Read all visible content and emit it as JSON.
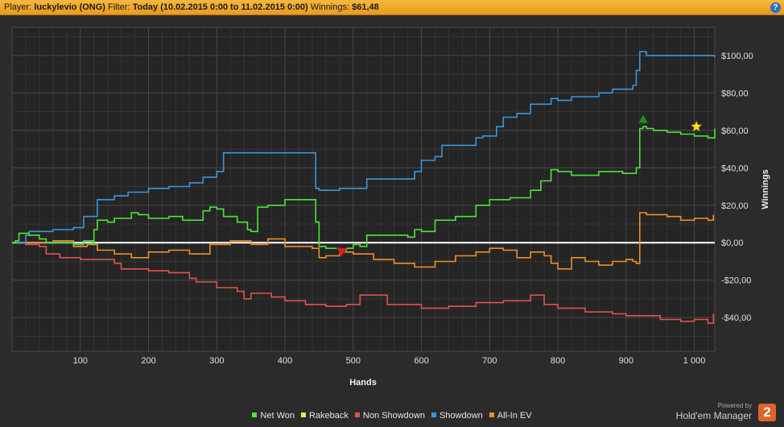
{
  "header": {
    "player_label": "Player:",
    "player_value": "luckylevio (ONG)",
    "filter_label": "Filter:",
    "filter_value": "Today (10.02.2015 0:00 to 11.02.2015 0:00)",
    "winnings_label": "Winnings:",
    "winnings_value": "$61,48",
    "help_glyph": "?"
  },
  "brand": {
    "powered": "Powered by",
    "name": "Hold'em Manager",
    "logo_text": "2"
  },
  "chart_data": {
    "type": "line",
    "xlabel": "Hands",
    "ylabel": "Winnings",
    "xlim": [
      0,
      1030
    ],
    "ylim": [
      -58,
      115
    ],
    "x_ticks": [
      {
        "v": 100,
        "label": "100"
      },
      {
        "v": 200,
        "label": "200"
      },
      {
        "v": 300,
        "label": "300"
      },
      {
        "v": 400,
        "label": "400"
      },
      {
        "v": 500,
        "label": "500"
      },
      {
        "v": 600,
        "label": "600"
      },
      {
        "v": 700,
        "label": "700"
      },
      {
        "v": 800,
        "label": "800"
      },
      {
        "v": 900,
        "label": "900"
      },
      {
        "v": 1000,
        "label": "1 000"
      }
    ],
    "y_ticks": [
      {
        "v": 100,
        "label": "$100,00"
      },
      {
        "v": 80,
        "label": "$80,00"
      },
      {
        "v": 60,
        "label": "$60,00"
      },
      {
        "v": 40,
        "label": "$40,00"
      },
      {
        "v": 20,
        "label": "$20,00"
      },
      {
        "v": 0,
        "label": "$0,00"
      },
      {
        "v": -20,
        "label": "-$20,00"
      },
      {
        "v": -40,
        "label": "-$40,00"
      }
    ],
    "grid": true,
    "legend_position": "bottom",
    "series": [
      {
        "name": "Net Won",
        "color": "#4fe33a",
        "x": [
          0,
          5,
          10,
          25,
          40,
          50,
          60,
          75,
          90,
          100,
          105,
          118,
          120,
          125,
          140,
          150,
          160,
          175,
          185,
          200,
          215,
          230,
          250,
          270,
          280,
          290,
          300,
          310,
          330,
          345,
          350,
          360,
          375,
          390,
          400,
          440,
          445,
          450,
          460,
          480,
          490,
          500,
          510,
          520,
          550,
          580,
          590,
          600,
          620,
          650,
          680,
          700,
          730,
          760,
          775,
          790,
          800,
          820,
          840,
          860,
          880,
          895,
          910,
          915,
          920,
          925,
          930,
          940,
          960,
          980,
          1000,
          1010,
          1020,
          1030
        ],
        "y": [
          0,
          1,
          5,
          4,
          2,
          0,
          0,
          0,
          -1,
          -1,
          1,
          -1,
          7,
          12,
          11,
          13,
          13,
          16,
          15,
          13,
          13,
          14,
          12,
          12,
          17,
          19,
          18,
          14,
          11,
          7,
          6,
          19,
          20,
          20,
          23,
          23,
          11,
          -2,
          -3,
          -4,
          -3,
          -1,
          -2,
          4,
          4,
          3,
          7,
          6,
          12,
          14,
          20,
          23,
          24,
          28,
          33,
          39,
          38,
          36,
          36,
          38,
          38,
          37,
          37,
          40,
          61,
          62,
          61,
          60,
          59,
          58,
          57,
          57,
          56,
          61
        ]
      },
      {
        "name": "Rakeback",
        "color": "#f2e94c",
        "x": [],
        "y": []
      },
      {
        "name": "Non Showdown",
        "color": "#e0544b",
        "x": [
          0,
          20,
          40,
          50,
          70,
          100,
          150,
          160,
          200,
          230,
          260,
          270,
          300,
          330,
          340,
          350,
          380,
          400,
          430,
          460,
          490,
          510,
          550,
          600,
          640,
          680,
          720,
          760,
          780,
          800,
          840,
          880,
          900,
          950,
          980,
          1000,
          1020,
          1028
        ],
        "y": [
          0,
          -1,
          -2,
          -6,
          -8,
          -9,
          -11,
          -14,
          -15,
          -16,
          -19,
          -21,
          -24,
          -26,
          -30,
          -27,
          -29,
          -31,
          -33,
          -34,
          -33,
          -28,
          -33,
          -35,
          -34,
          -32,
          -31,
          -28,
          -33,
          -35,
          -37,
          -38,
          -39,
          -41,
          -42,
          -41,
          -43,
          -38
        ]
      },
      {
        "name": "Showdown",
        "color": "#3a97de",
        "x": [
          0,
          20,
          25,
          60,
          90,
          105,
          110,
          125,
          150,
          170,
          200,
          230,
          260,
          280,
          300,
          310,
          350,
          370,
          380,
          390,
          445,
          450,
          480,
          500,
          520,
          590,
          600,
          620,
          630,
          680,
          690,
          710,
          720,
          740,
          760,
          790,
          800,
          820,
          840,
          860,
          880,
          910,
          915,
          920,
          930,
          1030
        ],
        "y": [
          0,
          4,
          6,
          7,
          8,
          14,
          14,
          23,
          25,
          27,
          29,
          30,
          32,
          35,
          38,
          48,
          48,
          48,
          48,
          48,
          29,
          28,
          29,
          29,
          34,
          38,
          44,
          46,
          52,
          56,
          57,
          62,
          67,
          69,
          74,
          77,
          76,
          78,
          78,
          80,
          82,
          84,
          92,
          102,
          100,
          99
        ]
      },
      {
        "name": "All-In EV",
        "color": "#ee8e2a",
        "x": [
          0,
          30,
          60,
          90,
          110,
          125,
          150,
          175,
          200,
          230,
          260,
          290,
          320,
          350,
          375,
          400,
          440,
          450,
          460,
          480,
          500,
          530,
          560,
          590,
          620,
          650,
          680,
          700,
          720,
          740,
          760,
          780,
          790,
          800,
          820,
          840,
          860,
          880,
          900,
          910,
          915,
          920,
          930,
          960,
          980,
          1000,
          1020,
          1028
        ],
        "y": [
          0,
          0,
          1,
          -2,
          -1,
          -4,
          -6,
          -8,
          -5,
          -4,
          -6,
          -1,
          1,
          -1,
          2,
          -2,
          -3,
          -8,
          -7,
          -5,
          -6,
          -9,
          -11,
          -13,
          -10,
          -7,
          -5,
          -3,
          -4,
          -8,
          -5,
          -7,
          -11,
          -14,
          -8,
          -10,
          -12,
          -10,
          -9,
          -10,
          -11,
          16,
          15,
          14,
          12,
          13,
          12,
          15
        ]
      }
    ],
    "annotations": [
      {
        "type": "triangle-down",
        "x": 483,
        "y": -5,
        "color": "#e01f1f"
      },
      {
        "type": "triangle-up",
        "x": 925,
        "y": 66,
        "color": "#1f8e1f"
      },
      {
        "type": "star",
        "x": 1003,
        "y": 62,
        "color": "#ffe21a"
      }
    ]
  }
}
